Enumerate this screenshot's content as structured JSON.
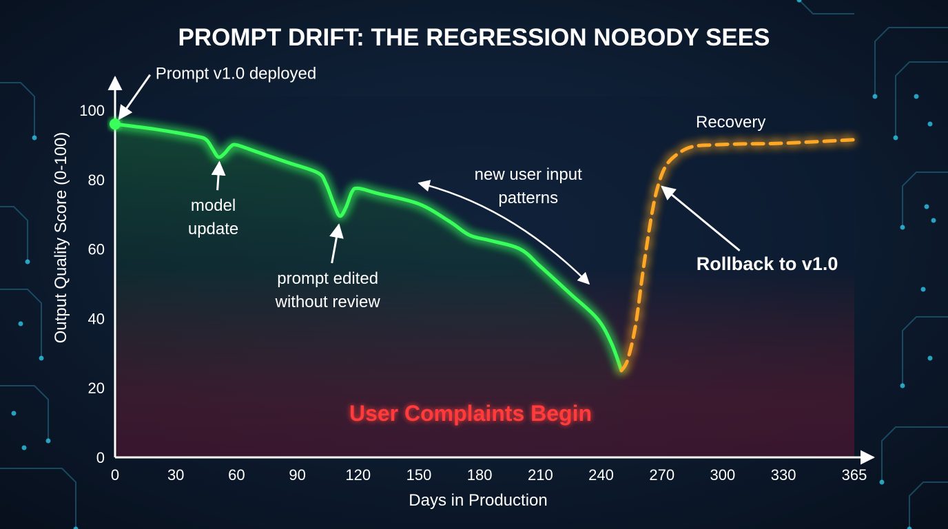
{
  "chart_data": {
    "type": "line",
    "title": "PROMPT DRIFT: THE REGRESSION NOBODY SEES",
    "xlabel": "Days in Production",
    "ylabel": "Output Quality Score (0-100)",
    "xlim": [
      0,
      365
    ],
    "ylim": [
      0,
      100
    ],
    "x_ticks": [
      0,
      30,
      60,
      90,
      120,
      150,
      180,
      210,
      240,
      270,
      300,
      330,
      365
    ],
    "y_ticks": [
      0,
      20,
      40,
      60,
      80,
      100
    ],
    "grid": true,
    "threshold": {
      "y": 24.5,
      "label": "User Complaints Begin",
      "color": "#ff3b3b"
    },
    "series": [
      {
        "color": "#39ff5a",
        "style": "solid",
        "x": [
          0,
          20,
          40,
          45,
          48,
          51,
          54,
          57,
          60,
          70,
          85,
          100,
          104,
          108,
          111,
          114,
          117,
          120,
          130,
          150,
          165,
          175,
          185,
          200,
          210,
          225,
          238,
          245,
          250
        ],
        "y": [
          96,
          94.5,
          92.5,
          91.5,
          89,
          86.5,
          87.5,
          89.5,
          90,
          88,
          85,
          82,
          79,
          73,
          69.5,
          72,
          76.5,
          77.5,
          76,
          73,
          68,
          64,
          62.5,
          60,
          55,
          47,
          40,
          33,
          25
        ]
      },
      {
        "color": "#ffa726",
        "style": "dashed",
        "x": [
          250,
          253,
          257,
          261,
          265,
          268,
          272,
          278,
          285,
          295,
          310,
          330,
          365
        ],
        "y": [
          25,
          28,
          38,
          55,
          70,
          78,
          84,
          87.5,
          89.5,
          90,
          90.3,
          90.5,
          91.5
        ]
      }
    ],
    "markers": [
      {
        "x": 0,
        "y": 96,
        "color": "#39ff5a"
      }
    ],
    "annotations": [
      {
        "text": [
          "Prompt v1.0 deployed"
        ],
        "text_x": 20,
        "text_y": 109,
        "point_x": 2,
        "point_y": 97.5,
        "bold": false,
        "anchor": "start",
        "color": "#ffffff"
      },
      {
        "text": [
          "model",
          "update"
        ],
        "text_x": 48.5,
        "text_y": 71,
        "point_x": 51.5,
        "point_y": 85,
        "bold": false,
        "anchor": "middle",
        "color": "#ffffff"
      },
      {
        "text": [
          "prompt edited",
          "without review"
        ],
        "text_x": 105,
        "text_y": 50,
        "point_x": 110.5,
        "point_y": 67,
        "bold": false,
        "anchor": "middle",
        "color": "#ffffff"
      },
      {
        "text": [
          "new user input",
          "patterns"
        ],
        "text_x": 204,
        "text_y": 80,
        "point_x": 150,
        "point_y": 79,
        "bold": false,
        "anchor": "middle",
        "color": "#ffffff",
        "curved_to": {
          "x": 234,
          "y": 50
        }
      },
      {
        "text": [
          "Recovery"
        ],
        "text_x": 304,
        "text_y": 95,
        "point_x": null,
        "point_y": null,
        "bold": false,
        "anchor": "middle",
        "color": "#ffffff"
      },
      {
        "text": [
          "Rollback to v1.0"
        ],
        "text_x": 322,
        "text_y": 54,
        "point_x": 270,
        "point_y": 78,
        "bold": true,
        "anchor": "middle",
        "color": "#ffffff"
      }
    ]
  }
}
